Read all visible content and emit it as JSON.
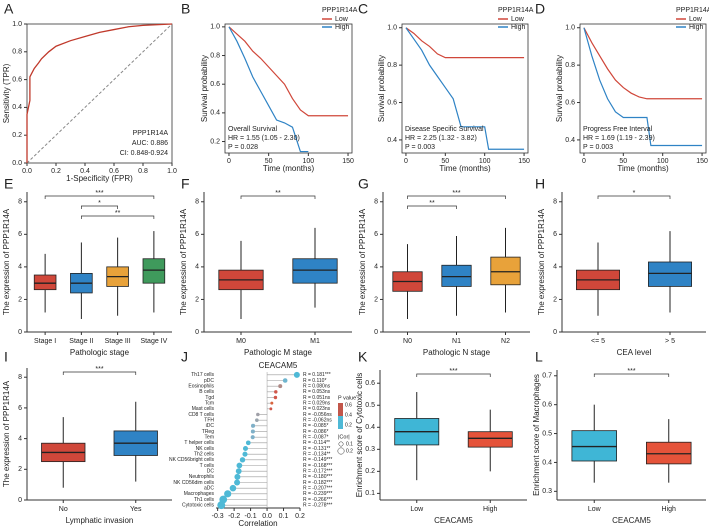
{
  "chart_data": [
    {
      "type": "roc",
      "label": "A",
      "xlabel": "1-Specificity (FPR)",
      "ylabel": "Sensitivity (TPR)",
      "annotations": [
        "PPP1R14A",
        "AUC: 0.886",
        "CI: 0.848-0.924"
      ],
      "color": "#c0392b",
      "x": [
        0,
        0,
        0.02,
        0.02,
        0.05,
        0.08,
        0.1,
        0.15,
        0.2,
        0.3,
        0.4,
        0.5,
        0.6,
        0.7,
        0.8,
        1.0
      ],
      "values": [
        0,
        0.35,
        0.45,
        0.62,
        0.68,
        0.72,
        0.75,
        0.8,
        0.84,
        0.88,
        0.91,
        0.94,
        0.96,
        0.98,
        0.99,
        1.0
      ],
      "xlim": [
        0,
        1
      ],
      "ylim": [
        0,
        1
      ],
      "xticks": [
        {
          "value": 0,
          "label": "0.0"
        },
        0.2,
        0.4,
        0.6,
        0.8,
        {
          "value": 1,
          "label": "1.0"
        }
      ],
      "yticks": [
        {
          "value": 0,
          "label": "0.0"
        },
        0.2,
        0.4,
        0.6,
        0.8,
        {
          "value": 1,
          "label": "1.0"
        }
      ]
    },
    {
      "type": "km",
      "label": "B",
      "xlabel": "Time (months)",
      "ylabel": "Survival probability",
      "legend_title": "PPP1R14A",
      "annotations": [
        "Overall Survival",
        "HR = 1.55 (1.05 - 2.30)",
        "P = 0.028"
      ],
      "series": [
        {
          "name": "Low",
          "color": "#d0473a",
          "x": [
            0,
            10,
            20,
            30,
            40,
            50,
            60,
            70,
            80,
            90,
            100,
            110,
            120,
            130,
            150
          ],
          "values": [
            1,
            0.95,
            0.9,
            0.83,
            0.78,
            0.72,
            0.66,
            0.6,
            0.5,
            0.42,
            0.38,
            0.38,
            0.38,
            0.38,
            0.38
          ]
        },
        {
          "name": "High",
          "color": "#2f83c5",
          "x": [
            0,
            10,
            20,
            30,
            40,
            50,
            60,
            70,
            80,
            90,
            100
          ],
          "values": [
            1,
            0.9,
            0.78,
            0.65,
            0.55,
            0.45,
            0.35,
            0.33,
            0.3,
            0.13,
            0.13
          ]
        }
      ],
      "xlim": [
        -5,
        155
      ],
      "ylim": [
        0.12,
        1.02
      ],
      "xticks": [
        0,
        50,
        100,
        150
      ],
      "yticks": [
        0.2,
        0.4,
        0.6,
        0.8,
        {
          "value": 1,
          "label": "1.0"
        }
      ]
    },
    {
      "type": "km",
      "label": "C",
      "xlabel": "Time (months)",
      "ylabel": "Survival probability",
      "legend_title": "PPP1R14A",
      "annotations": [
        "Disease Specific Survival",
        "HR = 2.25 (1.32 - 3.82)",
        "P = 0.003"
      ],
      "series": [
        {
          "name": "Low",
          "color": "#d0473a",
          "x": [
            0,
            10,
            20,
            30,
            40,
            50,
            60,
            100,
            150
          ],
          "values": [
            1,
            0.97,
            0.93,
            0.9,
            0.86,
            0.84,
            0.84,
            0.84,
            0.84
          ]
        },
        {
          "name": "High",
          "color": "#2f83c5",
          "x": [
            0,
            10,
            20,
            30,
            40,
            50,
            60,
            70,
            100,
            105,
            150
          ],
          "values": [
            1,
            0.94,
            0.88,
            0.8,
            0.74,
            0.68,
            0.62,
            0.47,
            0.47,
            0.35,
            0.35
          ]
        }
      ],
      "xlim": [
        -5,
        155
      ],
      "ylim": [
        0.33,
        1.02
      ],
      "xticks": [
        0,
        50,
        100,
        150
      ],
      "yticks": [
        0.4,
        0.6,
        0.8,
        {
          "value": 1,
          "label": "1.0"
        }
      ]
    },
    {
      "type": "km",
      "label": "D",
      "xlabel": "Time (months)",
      "ylabel": "Survival probability",
      "legend_title": "PPP1R14A",
      "annotations": [
        "Progress Free Interval",
        "HR = 1.69 (1.19 - 2.39)",
        "P = 0.003"
      ],
      "series": [
        {
          "name": "Low",
          "color": "#d0473a",
          "x": [
            0,
            10,
            20,
            30,
            40,
            50,
            60,
            70,
            80,
            100,
            150
          ],
          "values": [
            1,
            0.92,
            0.85,
            0.78,
            0.72,
            0.68,
            0.65,
            0.63,
            0.62,
            0.62,
            0.62
          ]
        },
        {
          "name": "High",
          "color": "#2f83c5",
          "x": [
            0,
            10,
            20,
            30,
            40,
            50,
            60,
            80,
            85,
            150
          ],
          "values": [
            1,
            0.85,
            0.72,
            0.62,
            0.55,
            0.52,
            0.52,
            0.52,
            0.37,
            0.37
          ]
        }
      ],
      "xlim": [
        -5,
        155
      ],
      "ylim": [
        0.33,
        1.02
      ],
      "xticks": [
        0,
        50,
        100,
        150
      ],
      "yticks": [
        0.4,
        0.6,
        0.8,
        {
          "value": 1,
          "label": "1.0"
        }
      ]
    },
    {
      "type": "box",
      "label": "E",
      "xlabel": "Pathologic stage",
      "ylabel": "The expression of PPP1R14A",
      "categories": [
        "Stage I",
        "Stage II",
        "Stage III",
        "Stage IV"
      ],
      "colors": [
        "#d0473a",
        "#2f83c5",
        "#e8a23a",
        "#3f9a5c"
      ],
      "min": [
        1.2,
        0.8,
        1.0,
        1.2
      ],
      "q1": [
        2.6,
        2.4,
        2.8,
        3.0
      ],
      "median": [
        3.0,
        3.0,
        3.4,
        3.8
      ],
      "q3": [
        3.5,
        3.6,
        4.0,
        4.5
      ],
      "max": [
        4.8,
        5.5,
        5.8,
        6.2
      ],
      "brackets": [
        {
          "between": [
            "Stage I",
            "Stage IV"
          ],
          "label": "***"
        },
        {
          "between": [
            "Stage II",
            "Stage III"
          ],
          "label": "*"
        },
        {
          "between": [
            "Stage II",
            "Stage IV"
          ],
          "label": "**"
        }
      ],
      "ylim": [
        0,
        8.6
      ],
      "yticks": [
        0,
        2,
        4,
        6,
        8
      ]
    },
    {
      "type": "box",
      "label": "F",
      "xlabel": "Pathologic M stage",
      "ylabel": "The expression of PPP1R14A",
      "categories": [
        "M0",
        "M1"
      ],
      "colors": [
        "#d0473a",
        "#2f83c5"
      ],
      "min": [
        0.8,
        1.5
      ],
      "q1": [
        2.6,
        3.0
      ],
      "median": [
        3.2,
        3.8
      ],
      "q3": [
        3.8,
        4.5
      ],
      "max": [
        5.6,
        6.4
      ],
      "brackets": [
        {
          "between": [
            "M0",
            "M1"
          ],
          "label": "**"
        }
      ],
      "ylim": [
        0,
        8.6
      ],
      "yticks": [
        0,
        2,
        4,
        6,
        8
      ]
    },
    {
      "type": "box",
      "label": "G",
      "xlabel": "Pathologic N stage",
      "ylabel": "The expression of PPP1R14A",
      "categories": [
        "N0",
        "N1",
        "N2"
      ],
      "colors": [
        "#d0473a",
        "#2f83c5",
        "#e8a23a"
      ],
      "min": [
        0.8,
        1.0,
        1.2
      ],
      "q1": [
        2.5,
        2.8,
        2.9
      ],
      "median": [
        3.1,
        3.4,
        3.7
      ],
      "q3": [
        3.7,
        4.1,
        4.6
      ],
      "max": [
        5.4,
        5.9,
        6.4
      ],
      "brackets": [
        {
          "between": [
            "N0",
            "N2"
          ],
          "label": "***"
        },
        {
          "between": [
            "N0",
            "N1"
          ],
          "label": "**"
        }
      ],
      "ylim": [
        0,
        8.6
      ],
      "yticks": [
        0,
        2,
        4,
        6,
        8
      ]
    },
    {
      "type": "box",
      "label": "H",
      "xlabel": "CEA level",
      "ylabel": "The expression of PPP1R14A",
      "categories": [
        "<= 5",
        "> 5"
      ],
      "colors": [
        "#d0473a",
        "#2f83c5"
      ],
      "min": [
        1.0,
        1.2
      ],
      "q1": [
        2.6,
        2.8
      ],
      "median": [
        3.2,
        3.6
      ],
      "q3": [
        3.8,
        4.3
      ],
      "max": [
        5.5,
        6.2
      ],
      "brackets": [
        {
          "between": [
            "<= 5",
            "> 5"
          ],
          "label": "*"
        }
      ],
      "ylim": [
        0,
        8.6
      ],
      "yticks": [
        0,
        2,
        4,
        6,
        8
      ]
    },
    {
      "type": "box",
      "label": "I",
      "xlabel": "Lymphatic invasion",
      "ylabel": "The expression of PPP1R14A",
      "categories": [
        "No",
        "Yes"
      ],
      "colors": [
        "#d0473a",
        "#2f83c5"
      ],
      "min": [
        0.8,
        1.2
      ],
      "q1": [
        2.5,
        2.9
      ],
      "median": [
        3.1,
        3.7
      ],
      "q3": [
        3.7,
        4.5
      ],
      "max": [
        5.4,
        6.4
      ],
      "brackets": [
        {
          "between": [
            "No",
            "Yes"
          ],
          "label": "***"
        }
      ],
      "ylim": [
        0,
        8.6
      ],
      "yticks": [
        0,
        2,
        4,
        6,
        8
      ]
    },
    {
      "type": "lollipop",
      "label": "J",
      "title": "CEACAM5",
      "xlabel": "Correlation",
      "categories": [
        "Th17 cells",
        "pDC",
        "Eosinophils",
        "B cells",
        "Tgd",
        "Tcm",
        "Mast cells",
        "CD8 T cells",
        "TFH",
        "iDC",
        "TReg",
        "Tem",
        "T helper cells",
        "NK cells",
        "Th2 cells",
        "NK CD56bright cells",
        "T cells",
        "DC",
        "Neutrophils",
        "NK CD56dim cells",
        "aDC",
        "Macrophages",
        "Th1 cells",
        "Cytotoxic cells"
      ],
      "values": [
        0.181,
        0.11,
        0.08,
        0.053,
        0.051,
        0.029,
        0.023,
        -0.056,
        -0.062,
        -0.085,
        -0.086,
        -0.087,
        -0.114,
        -0.131,
        -0.134,
        -0.149,
        -0.168,
        -0.172,
        -0.18,
        -0.182,
        -0.207,
        -0.239,
        -0.266,
        -0.278
      ],
      "value_labels": [
        "R = 0.181***",
        "R = 0.110*",
        "R = 0.080ns",
        "R = 0.053ns",
        "R = 0.051ns",
        "R = 0.029ns",
        "R = 0.023ns",
        "R = -0.056ns",
        "R = -0.062ns",
        "R = -0.085*",
        "R = -0.086*",
        "R = -0.087*",
        "R = -0.114**",
        "R = -0.131**",
        "R = -0.134**",
        "R = -0.149***",
        "R = -0.168***",
        "R = -0.172***",
        "R = -0.180***",
        "R = -0.182***",
        "R = -0.207***",
        "R = -0.239***",
        "R = -0.266***",
        "R = -0.278***"
      ],
      "colors": [
        "#4fb9d6",
        "#6fb5cf",
        "#b08a86",
        "#d0574a",
        "#d0574a",
        "#d8643e",
        "#d0574a",
        "#a0a0a8",
        "#9aa5ae",
        "#7fb0c8",
        "#7fb0c8",
        "#7fb0c8",
        "#4fb9d6",
        "#4fb9d6",
        "#4fb9d6",
        "#4fb9d6",
        "#4fb9d6",
        "#4fb9d6",
        "#4fb9d6",
        "#4fb9d6",
        "#4fb9d6",
        "#4fb9d6",
        "#4fb9d6",
        "#4fb9d6"
      ],
      "xlim": [
        -0.31,
        0.2
      ],
      "xticks": [
        -0.3,
        -0.2,
        -0.1,
        {
          "value": 0,
          "label": "0.0"
        },
        0.1,
        0.2
      ],
      "color_legend": {
        "title": "P value",
        "ticks": [
          0.6,
          0.4,
          0.2
        ]
      },
      "size_legend": {
        "title": "|Cor|",
        "ticks": [
          0.1,
          0.2
        ]
      }
    },
    {
      "type": "box",
      "label": "K",
      "xlabel": "CEACAM5",
      "ylabel": "Enrichment score of Cytotoxic cells",
      "categories": [
        "Low",
        "High"
      ],
      "colors": [
        "#3fb6d6",
        "#e5533a"
      ],
      "min": [
        0.16,
        0.2
      ],
      "q1": [
        0.32,
        0.31
      ],
      "median": [
        0.38,
        0.35
      ],
      "q3": [
        0.44,
        0.38
      ],
      "max": [
        0.56,
        0.48
      ],
      "brackets": [
        {
          "between": [
            "Low",
            "High"
          ],
          "label": "***"
        }
      ],
      "ylim": [
        0.07,
        0.66
      ],
      "yticks": [
        0.1,
        0.2,
        0.3,
        0.4,
        0.5,
        0.6
      ]
    },
    {
      "type": "box",
      "label": "L",
      "xlabel": "CEACAM5",
      "ylabel": "Enrichment score of Macrophages",
      "categories": [
        "Low",
        "High"
      ],
      "colors": [
        "#3fb6d6",
        "#e5533a"
      ],
      "min": [
        0.33,
        0.33
      ],
      "q1": [
        0.405,
        0.395
      ],
      "median": [
        0.455,
        0.43
      ],
      "q3": [
        0.51,
        0.47
      ],
      "max": [
        0.6,
        0.55
      ],
      "brackets": [
        {
          "between": [
            "Low",
            "High"
          ],
          "label": "***"
        }
      ],
      "ylim": [
        0.27,
        0.72
      ],
      "yticks": [
        0.3,
        0.4,
        0.5,
        0.6,
        0.7
      ]
    }
  ]
}
